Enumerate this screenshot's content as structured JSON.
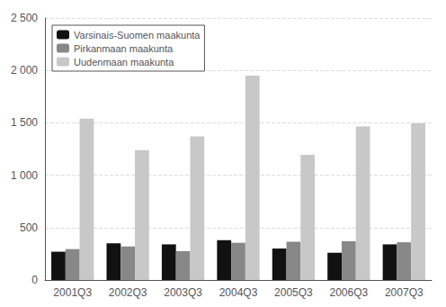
{
  "chart_data": {
    "type": "bar",
    "categories": [
      "2001Q3",
      "2002Q3",
      "2003Q3",
      "2004Q3",
      "2005Q3",
      "2006Q3",
      "2007Q3"
    ],
    "series": [
      {
        "name": "Varsinais-Suomen maakunta",
        "color": "#111111",
        "values": [
          270,
          350,
          340,
          380,
          300,
          260,
          340
        ]
      },
      {
        "name": "Pirkanmaan maakunta",
        "color": "#888888",
        "values": [
          295,
          320,
          275,
          355,
          365,
          370,
          360
        ]
      },
      {
        "name": "Uudenmaan maakunta",
        "color": "#c8c8c8",
        "values": [
          1540,
          1240,
          1370,
          1950,
          1195,
          1465,
          1495
        ]
      }
    ],
    "ylim": [
      0,
      2500
    ],
    "yticks": [
      0,
      500,
      {
        "value": 1000,
        "label": "1 000"
      },
      {
        "value": 1500,
        "label": "1 500"
      },
      {
        "value": 2000,
        "label": "2 000"
      },
      {
        "value": 2500,
        "label": "2 500"
      }
    ],
    "grid": true,
    "legend": "upper left"
  }
}
